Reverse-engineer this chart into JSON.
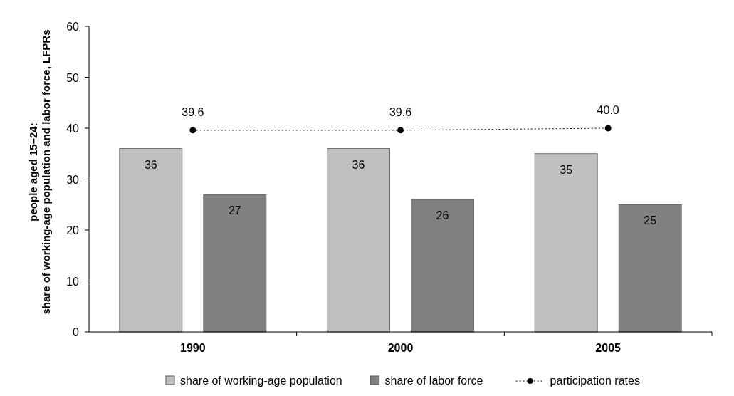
{
  "chart_data": {
    "type": "bar",
    "ylabel": "people aged 15–24:\nshare of working-age population and labor force, LFPRs",
    "categories": [
      "1990",
      "2000",
      "2005"
    ],
    "series": [
      {
        "name": "share of working-age population",
        "color": "#bfbfbf",
        "values": [
          36,
          36,
          35
        ]
      },
      {
        "name": "share of labor force",
        "color": "#808080",
        "values": [
          27,
          26,
          25
        ]
      },
      {
        "name": "participation rates",
        "type": "line",
        "color": "#000000",
        "values": [
          39.6,
          39.6,
          40.0
        ],
        "value_labels": [
          "39.6",
          "39.6",
          "40.0"
        ],
        "marker": "circle",
        "line_style": "dotted"
      }
    ],
    "ylim": [
      0,
      60
    ],
    "yticks": [
      0,
      10,
      20,
      30,
      40,
      50,
      60
    ],
    "data_labels": true,
    "legend": "bottom"
  }
}
